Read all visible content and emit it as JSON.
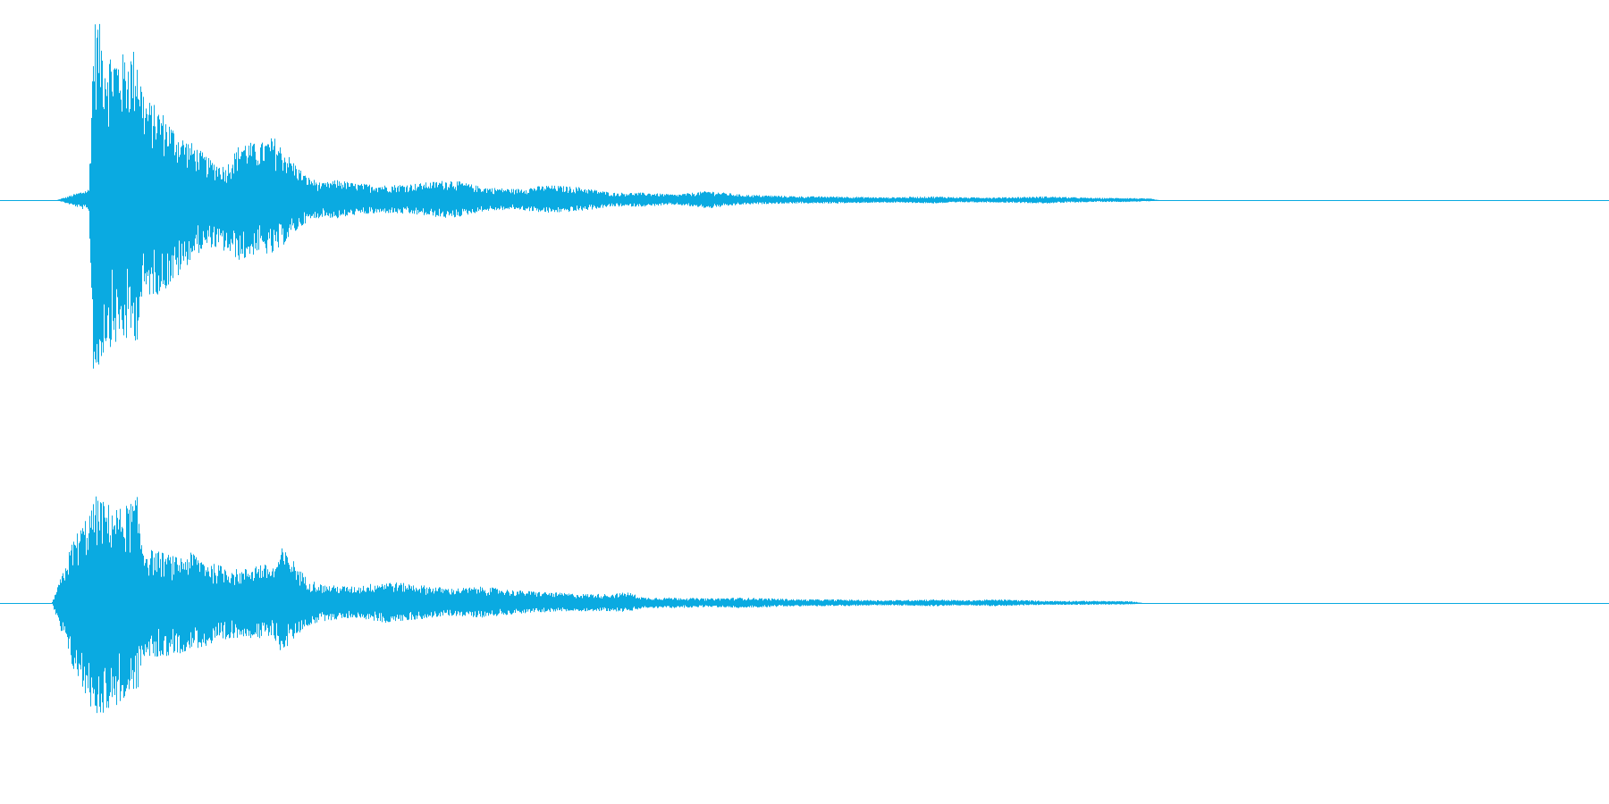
{
  "chart_data": {
    "type": "area",
    "title": "",
    "xlabel": "",
    "ylabel": "",
    "grid": false,
    "legend": "none",
    "color": "#0aaae1",
    "ylim": [
      -1,
      1
    ],
    "x_range": [
      0,
      1
    ],
    "series": [
      {
        "channel": "top",
        "envelope": {
          "x": [
            0.0,
            0.035,
            0.045,
            0.055,
            0.058,
            0.06,
            0.062,
            0.065,
            0.075,
            0.085,
            0.087,
            0.09,
            0.1,
            0.11,
            0.12,
            0.13,
            0.14,
            0.15,
            0.16,
            0.17,
            0.18,
            0.19,
            0.2,
            0.21,
            0.22,
            0.24,
            0.26,
            0.28,
            0.3,
            0.32,
            0.34,
            0.36,
            0.38,
            0.4,
            0.42,
            0.44,
            0.46,
            0.48,
            0.5,
            0.52,
            0.55,
            0.58,
            0.6,
            0.62,
            0.65,
            0.68,
            0.7,
            0.715,
            0.72,
            1.0
          ],
          "pos": [
            0.0,
            0.0,
            0.03,
            0.06,
            0.95,
            0.99,
            0.93,
            0.82,
            0.78,
            0.82,
            0.68,
            0.55,
            0.48,
            0.36,
            0.3,
            0.22,
            0.18,
            0.32,
            0.3,
            0.34,
            0.23,
            0.13,
            0.09,
            0.11,
            0.09,
            0.08,
            0.09,
            0.11,
            0.07,
            0.06,
            0.08,
            0.07,
            0.04,
            0.04,
            0.03,
            0.05,
            0.03,
            0.025,
            0.02,
            0.02,
            0.015,
            0.02,
            0.015,
            0.015,
            0.02,
            0.012,
            0.012,
            0.008,
            0.0,
            0.0
          ],
          "neg": [
            0.0,
            0.0,
            0.03,
            0.06,
            0.98,
            1.0,
            0.9,
            0.79,
            0.77,
            0.75,
            0.6,
            0.52,
            0.5,
            0.42,
            0.3,
            0.25,
            0.28,
            0.33,
            0.28,
            0.3,
            0.2,
            0.12,
            0.09,
            0.1,
            0.08,
            0.07,
            0.08,
            0.1,
            0.06,
            0.05,
            0.07,
            0.06,
            0.035,
            0.035,
            0.025,
            0.045,
            0.025,
            0.02,
            0.018,
            0.018,
            0.013,
            0.018,
            0.012,
            0.013,
            0.018,
            0.01,
            0.01,
            0.006,
            0.0,
            0.0
          ]
        }
      },
      {
        "channel": "bottom",
        "envelope": {
          "x": [
            0.0,
            0.032,
            0.036,
            0.04,
            0.045,
            0.05,
            0.055,
            0.058,
            0.06,
            0.065,
            0.075,
            0.085,
            0.087,
            0.09,
            0.1,
            0.11,
            0.12,
            0.13,
            0.14,
            0.15,
            0.16,
            0.17,
            0.175,
            0.18,
            0.19,
            0.2,
            0.22,
            0.24,
            0.26,
            0.28,
            0.3,
            0.32,
            0.34,
            0.36,
            0.38,
            0.39,
            0.4,
            0.42,
            0.44,
            0.46,
            0.48,
            0.5,
            0.52,
            0.55,
            0.58,
            0.6,
            0.62,
            0.65,
            0.68,
            0.7,
            0.705,
            0.71,
            1.0
          ],
          "pos": [
            0.0,
            0.0,
            0.1,
            0.2,
            0.35,
            0.42,
            0.5,
            0.55,
            0.6,
            0.55,
            0.52,
            0.58,
            0.4,
            0.3,
            0.28,
            0.25,
            0.28,
            0.22,
            0.2,
            0.18,
            0.22,
            0.2,
            0.3,
            0.26,
            0.14,
            0.1,
            0.09,
            0.12,
            0.1,
            0.08,
            0.09,
            0.07,
            0.06,
            0.05,
            0.05,
            0.06,
            0.03,
            0.03,
            0.025,
            0.03,
            0.025,
            0.02,
            0.02,
            0.015,
            0.02,
            0.015,
            0.02,
            0.012,
            0.012,
            0.01,
            0.008,
            0.0,
            0.0
          ],
          "neg": [
            0.0,
            0.0,
            0.12,
            0.22,
            0.36,
            0.46,
            0.55,
            0.6,
            0.62,
            0.6,
            0.55,
            0.5,
            0.38,
            0.3,
            0.3,
            0.28,
            0.25,
            0.24,
            0.22,
            0.18,
            0.2,
            0.19,
            0.28,
            0.22,
            0.13,
            0.1,
            0.08,
            0.11,
            0.09,
            0.07,
            0.08,
            0.06,
            0.05,
            0.045,
            0.045,
            0.05,
            0.028,
            0.028,
            0.022,
            0.028,
            0.022,
            0.018,
            0.018,
            0.013,
            0.018,
            0.013,
            0.018,
            0.01,
            0.01,
            0.008,
            0.006,
            0.0,
            0.0
          ]
        }
      }
    ]
  }
}
